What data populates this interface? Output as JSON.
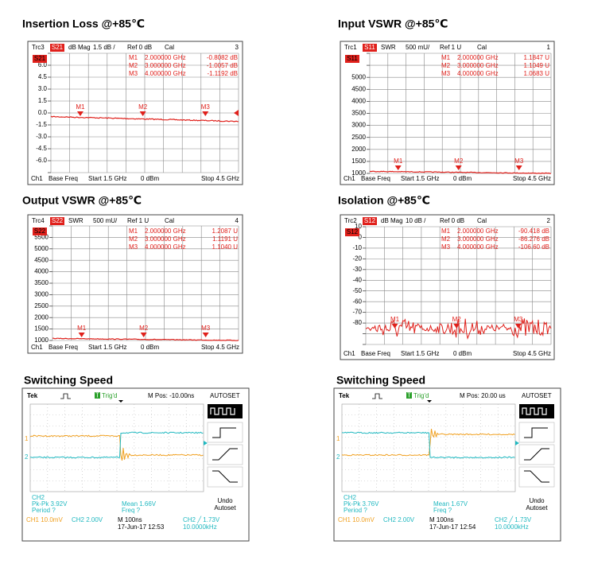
{
  "panels": [
    {
      "title": "Insertion Loss @+85℃",
      "header": {
        "trace": "Trc3",
        "param": "S21",
        "format": "dB Mag",
        "scale": "1.5 dB /",
        "ref": "Ref 0 dB",
        "cal": "Cal",
        "channel": "3"
      },
      "y_labels": [
        "6.0",
        "4.5",
        "3.0",
        "1.5",
        "0.0",
        "-1.5",
        "-3.0",
        "-4.5",
        "-6.0"
      ],
      "markers": [
        {
          "name": "M1",
          "freq": "2.000000 GHz",
          "value": "-0.8082 dB"
        },
        {
          "name": "M2",
          "freq": "3.000000 GHz",
          "value": "-1.0057 dB"
        },
        {
          "name": "M3",
          "freq": "4.000000 GHz",
          "value": "-1.1192 dB"
        }
      ],
      "footer": {
        "channel": "Ch1",
        "base": "Base Freq",
        "start": "Start  1.5 GHz",
        "power": "0 dBm",
        "stop": "Stop  4.5 GHz"
      }
    },
    {
      "title": "Input VSWR @+85℃",
      "header": {
        "trace": "Trc1",
        "param": "S11",
        "format": "SWR",
        "scale": "500 mU/",
        "ref": "Ref 1 U",
        "cal": "Cal",
        "channel": "1"
      },
      "y_labels": [
        "5000",
        "4500",
        "4000",
        "3500",
        "3000",
        "2500",
        "2000",
        "1500",
        "1000"
      ],
      "markers": [
        {
          "name": "M1",
          "freq": "2.000000 GHz",
          "value": "1.1847  U"
        },
        {
          "name": "M2",
          "freq": "3.000000 GHz",
          "value": "1.1049  U"
        },
        {
          "name": "M3",
          "freq": "4.000000 GHz",
          "value": "1.0683  U"
        }
      ],
      "footer": {
        "channel": "Ch1",
        "base": "Base Freq",
        "start": "Start  1.5 GHz",
        "power": "0 dBm",
        "stop": "Stop  4.5 GHz"
      }
    },
    {
      "title": "Output VSWR @+85℃",
      "header": {
        "trace": "Trc4",
        "param": "S22",
        "format": "SWR",
        "scale": "500 mU/",
        "ref": "Ref 1 U",
        "cal": "Cal",
        "channel": "4"
      },
      "y_labels": [
        "5500",
        "5000",
        "4500",
        "4000",
        "3500",
        "3000",
        "2500",
        "2000",
        "1500",
        "1000"
      ],
      "markers": [
        {
          "name": "M1",
          "freq": "2.000000 GHz",
          "value": "1.2087  U"
        },
        {
          "name": "M2",
          "freq": "3.000000 GHz",
          "value": "1.1191  U"
        },
        {
          "name": "M3",
          "freq": "4.000000 GHz",
          "value": "1.1040  U"
        }
      ],
      "footer": {
        "channel": "Ch1",
        "base": "Base Freq",
        "start": "Start  1.5 GHz",
        "power": "0 dBm",
        "stop": "Stop  4.5 GHz"
      }
    },
    {
      "title": "Isolation @+85℃",
      "header": {
        "trace": "Trc2",
        "param": "S12",
        "format": "dB Mag",
        "scale": "10 dB /",
        "ref": "Ref 0 dB",
        "cal": "Cal",
        "channel": "2"
      },
      "y_labels": [
        "10",
        "0",
        "-10",
        "-20",
        "-30",
        "-40",
        "-50",
        "-60",
        "-70",
        "-80"
      ],
      "markers": [
        {
          "name": "M1",
          "freq": "2.000000 GHz",
          "value": "-90.418 dB"
        },
        {
          "name": "M2",
          "freq": "3.000000 GHz",
          "value": "-86.276 dB"
        },
        {
          "name": "M3",
          "freq": "4.000000 GHz",
          "value": "-106.60 dB"
        }
      ],
      "footer": {
        "channel": "Ch1",
        "base": "Base Freq",
        "start": "Start  1.5 GHz",
        "power": "0 dBm",
        "stop": "Stop  4.5 GHz"
      }
    }
  ],
  "scopes": [
    {
      "title": "Switching Speed",
      "brand": "Tek",
      "trigger_badge": "T",
      "trigger": "Trig'd",
      "position": "M Pos: -10.00ns",
      "menu_title": "AUTOSET",
      "ch1_marker": "1",
      "ch2_marker": "2",
      "measure_source": "CH2",
      "pk_pk": "Pk-Pk 3.92V",
      "period": "Period ?",
      "mean": "Mean 1.66V",
      "freq": "Freq ?",
      "undo": "Undo",
      "autoset": "Autoset",
      "ch1_scale": "CH1  10.0mV",
      "ch2_scale": "CH2  2.00V",
      "timebase": "M 100ns",
      "date": "17-Jun-17 12:53",
      "trigger_level": "CH2 ╱ 1.73V",
      "trigger_freq": "10.0000kHz"
    },
    {
      "title": "Switching Speed",
      "brand": "Tek",
      "trigger_badge": "T",
      "trigger": "Trig'd",
      "position": "M Pos: 20.00 us",
      "menu_title": "AUTOSET",
      "ch1_marker": "1",
      "ch2_marker": "2",
      "measure_source": "CH2",
      "pk_pk": "Pk-Pk 3.76V",
      "period": "Period ?",
      "mean": "Mean 1.67V",
      "freq": "Freq ?",
      "undo": "Undo",
      "autoset": "Autoset",
      "ch1_scale": "CH1  10.0mV",
      "ch2_scale": "CH2  2.00V",
      "timebase": "M 100ns",
      "date": "17-Jun-17 12:54",
      "trigger_level": "CH2 ╱ 1.73V",
      "trigger_freq": "10.0000kHz"
    }
  ]
}
